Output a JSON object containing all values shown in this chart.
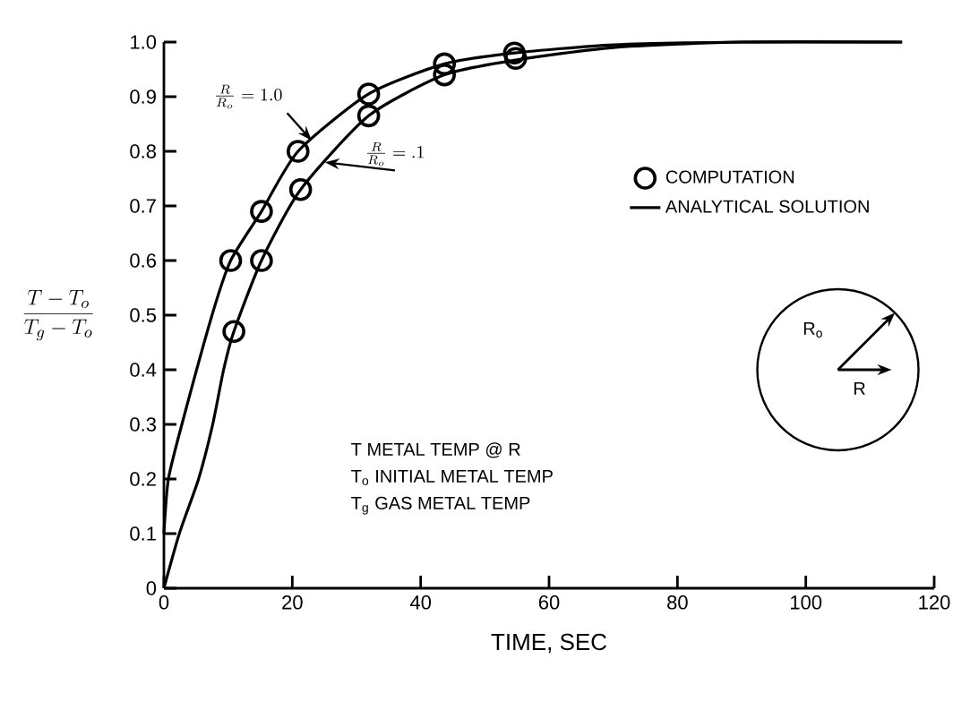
{
  "chart_data": {
    "type": "scatter",
    "xlabel": "TIME, SEC",
    "ylabel": "\\frac{T - T_o}{T_g - T_o}",
    "xlim": [
      0,
      120
    ],
    "ylim": [
      0,
      1.0
    ],
    "xticks": [
      0,
      20,
      40,
      60,
      80,
      100,
      120
    ],
    "yticks": [
      0,
      0.1,
      0.2,
      0.3,
      0.4,
      0.5,
      0.6,
      0.7,
      0.8,
      0.9,
      {
        "value": 1.0,
        "label": "1.0"
      }
    ],
    "grid": false,
    "legend": "top right",
    "series": [
      {
        "name": "COMPUTATION",
        "marker": "circle",
        "color": "#000000",
        "x": [
          10.4,
          15.2,
          20.9,
          31.9,
          43.7,
          54.6
        ],
        "values": [
          0.6,
          0.69,
          0.8,
          0.905,
          0.96,
          0.98
        ]
      },
      {
        "marker": "circle",
        "color": "#000000",
        "x": [
          10.9,
          15.2,
          21.3,
          31.9,
          43.7,
          54.8
        ],
        "values": [
          0.47,
          0.6,
          0.73,
          0.865,
          0.94,
          0.97
        ]
      },
      {
        "name": "ANALYTICAL SOLUTION",
        "type": "line",
        "marker": "none",
        "color": "#000000",
        "x": [
          0,
          0.7,
          2.8,
          7.5,
          10.4,
          15.2,
          20.9,
          31.9,
          43.7,
          54.6,
          70,
          90,
          115
        ],
        "values": [
          0.1,
          0.2,
          0.3,
          0.5,
          0.6,
          0.69,
          0.8,
          0.905,
          0.96,
          0.98,
          0.995,
          1.0,
          1.0
        ]
      },
      {
        "type": "line",
        "marker": "none",
        "color": "#000000",
        "x": [
          0,
          2.4,
          5.4,
          7.6,
          9.3,
          10.9,
          15.2,
          21.3,
          31.9,
          43.7,
          54.8,
          70,
          90,
          115
        ],
        "values": [
          0,
          0.1,
          0.2,
          0.3,
          0.4,
          0.47,
          0.6,
          0.73,
          0.865,
          0.94,
          0.967,
          0.99,
          1.0,
          1.0
        ]
      }
    ],
    "annotations": [
      {
        "text": "\\frac{R}{R_o}=1.0",
        "x": 23.0,
        "y": 0.82
      },
      {
        "text": "\\frac{R}{R_o}=.1",
        "x": 25.1,
        "y": 0.78
      },
      "T METAL TEMP @ R",
      "T$_{o}$ INITIAL METAL TEMP",
      "T$_{g}$ GAS METAL TEMP",
      "R$_{o}$",
      "R"
    ]
  }
}
